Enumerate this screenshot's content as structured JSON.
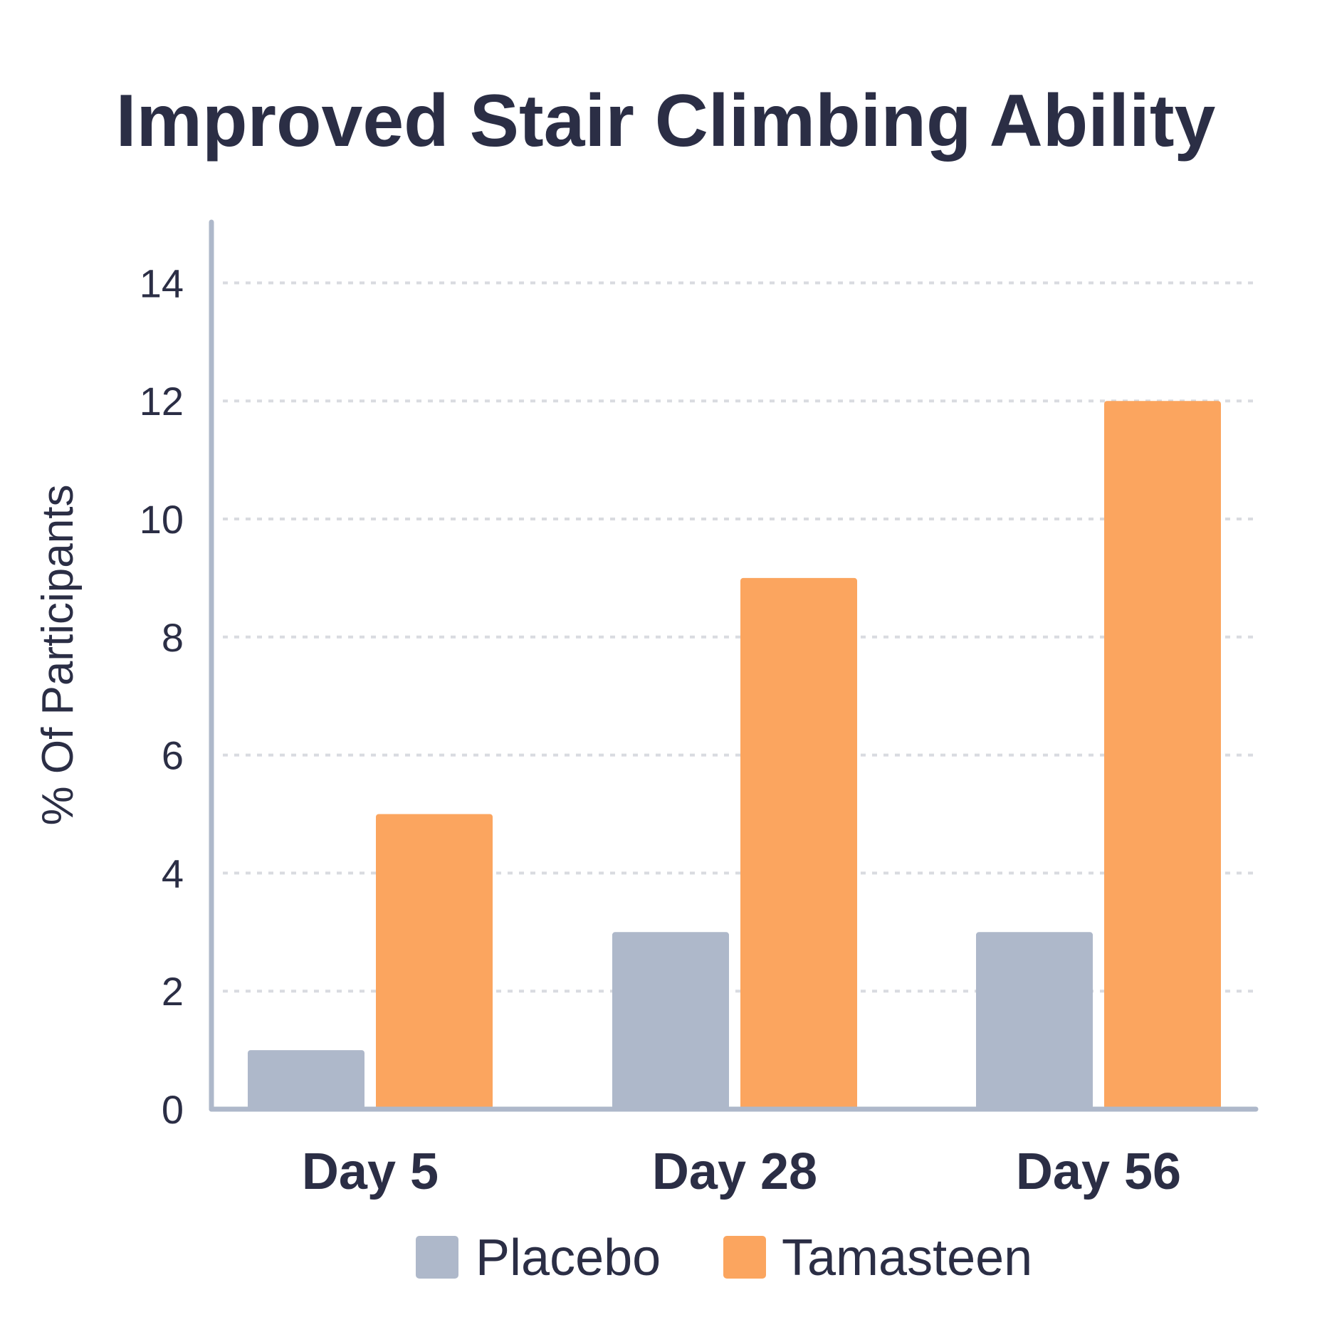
{
  "chart_data": {
    "type": "bar",
    "title": "Improved Stair Climbing Ability",
    "xlabel": "",
    "ylabel": "% Of Participants",
    "categories": [
      "Day 5",
      "Day 28",
      "Day 56"
    ],
    "series": [
      {
        "name": "Placebo",
        "values": [
          1,
          3,
          3
        ],
        "color": "#aeb8ca"
      },
      {
        "name": "Tamasteen",
        "values": [
          5,
          9,
          12
        ],
        "color": "#fba55f"
      }
    ],
    "yticks": [
      0,
      2,
      4,
      6,
      8,
      10,
      12,
      14
    ],
    "ylim": [
      0,
      15
    ],
    "grid": true,
    "legend_position": "bottom"
  },
  "colors": {
    "text": "#2b2e45",
    "axis": "#aeb8ca",
    "grid": "#d9dbe0"
  }
}
